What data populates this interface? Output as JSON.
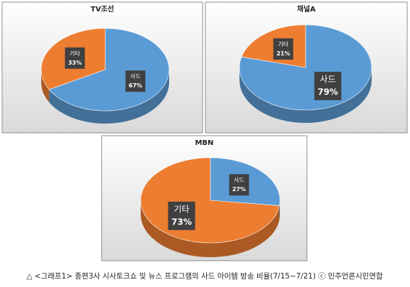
{
  "chart_data": [
    {
      "type": "pie",
      "title": "TV조선",
      "categories": [
        "사드",
        "기타"
      ],
      "values": [
        67,
        33
      ],
      "value_labels": [
        "67%",
        "33%"
      ],
      "colors": [
        "#5b9bd5",
        "#ed7d31"
      ]
    },
    {
      "type": "pie",
      "title": "채널A",
      "categories": [
        "사드",
        "기타"
      ],
      "values": [
        79,
        21
      ],
      "value_labels": [
        "79%",
        "21%"
      ],
      "colors": [
        "#5b9bd5",
        "#ed7d31"
      ]
    },
    {
      "type": "pie",
      "title": "MBN",
      "categories": [
        "사드",
        "기타"
      ],
      "values": [
        27,
        73
      ],
      "value_labels": [
        "27%",
        "73%"
      ],
      "colors": [
        "#5b9bd5",
        "#ed7d31"
      ]
    }
  ],
  "caption": "△ <그래프1> 종편3사 시사토크쇼 및 뉴스 프로그램의 사드 아이템 방송 비율(7/15~7/21) ⓒ 민주언론시민연합"
}
